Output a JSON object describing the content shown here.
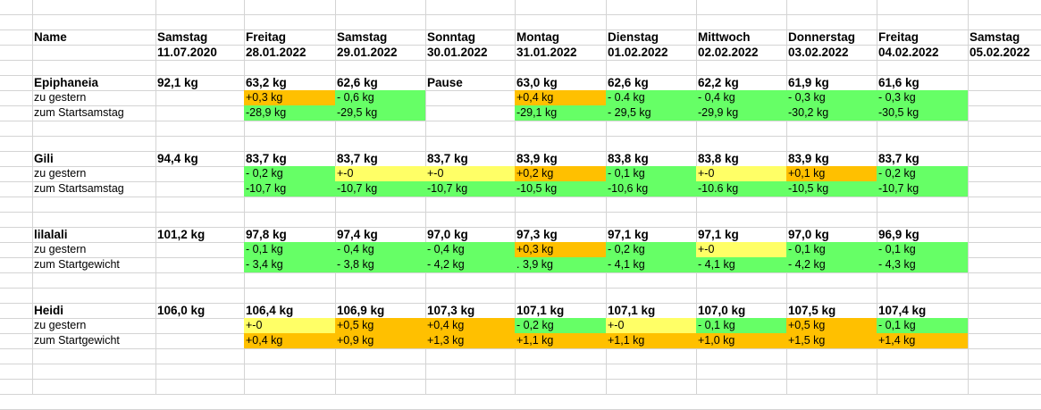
{
  "colors": {
    "green": "#66ff66",
    "orange": "#ffc000",
    "yellow": "#ffff66",
    "grid": "#d4d4d4"
  },
  "header": {
    "name_label": "Name",
    "days": [
      {
        "weekday": "Samstag",
        "date": "11.07.2020"
      },
      {
        "weekday": "Freitag",
        "date": "28.01.2022"
      },
      {
        "weekday": "Samstag",
        "date": "29.01.2022"
      },
      {
        "weekday": "Sonntag",
        "date": "30.01.2022"
      },
      {
        "weekday": "Montag",
        "date": "31.01.2022"
      },
      {
        "weekday": "Dienstag",
        "date": "01.02.2022"
      },
      {
        "weekday": "Mittwoch",
        "date": "02.02.2022"
      },
      {
        "weekday": "Donnerstag",
        "date": "03.02.2022"
      },
      {
        "weekday": "Freitag",
        "date": "04.02.2022"
      },
      {
        "weekday": "Samstag",
        "date": "05.02.2022"
      }
    ]
  },
  "people": [
    {
      "name": "Epiphaneia",
      "weights": [
        "92,1 kg",
        "63,2 kg",
        "62,6 kg",
        "Pause",
        "63,0 kg",
        "62,6 kg",
        "62,2 kg",
        "61,9 kg",
        "61,6 kg",
        ""
      ],
      "row2_label": "zu gestern",
      "row2": [
        {
          "v": "",
          "c": ""
        },
        {
          "v": "+0,3 kg",
          "c": "orange"
        },
        {
          "v": "- 0,6 kg",
          "c": "green"
        },
        {
          "v": "",
          "c": ""
        },
        {
          "v": "+0,4 kg",
          "c": "orange"
        },
        {
          "v": "- 0.4 kg",
          "c": "green"
        },
        {
          "v": "- 0,4 kg",
          "c": "green"
        },
        {
          "v": "- 0,3 kg",
          "c": "green"
        },
        {
          "v": "- 0,3 kg",
          "c": "green"
        },
        {
          "v": "",
          "c": ""
        }
      ],
      "row3_label": "zum Startsamstag",
      "row3": [
        {
          "v": "",
          "c": ""
        },
        {
          "v": "-28,9 kg",
          "c": "green"
        },
        {
          "v": "-29,5 kg",
          "c": "green"
        },
        {
          "v": "",
          "c": ""
        },
        {
          "v": "-29,1 kg",
          "c": "green"
        },
        {
          "v": "- 29,5 kg",
          "c": "green"
        },
        {
          "v": "-29,9 kg",
          "c": "green"
        },
        {
          "v": "-30,2 kg",
          "c": "green"
        },
        {
          "v": "-30,5 kg",
          "c": "green"
        },
        {
          "v": "",
          "c": ""
        }
      ]
    },
    {
      "name": "Gili",
      "weights": [
        "94,4 kg",
        "83,7 kg",
        "83,7 kg",
        "83,7 kg",
        "83,9 kg",
        "83,8 kg",
        "83,8 kg",
        "83,9 kg",
        "83,7 kg",
        ""
      ],
      "row2_label": "zu gestern",
      "row2": [
        {
          "v": "",
          "c": ""
        },
        {
          "v": "- 0,2 kg",
          "c": "green"
        },
        {
          "v": "+-0",
          "c": "yellow"
        },
        {
          "v": "+-0",
          "c": "yellow"
        },
        {
          "v": "+0,2 kg",
          "c": "orange"
        },
        {
          "v": "- 0,1 kg",
          "c": "green"
        },
        {
          "v": "+-0",
          "c": "yellow"
        },
        {
          "v": "+0,1 kg",
          "c": "orange"
        },
        {
          "v": "- 0,2 kg",
          "c": "green"
        },
        {
          "v": "",
          "c": ""
        }
      ],
      "row3_label": "zum Startsamstag",
      "row3": [
        {
          "v": "",
          "c": ""
        },
        {
          "v": "-10,7 kg",
          "c": "green"
        },
        {
          "v": "-10,7 kg",
          "c": "green"
        },
        {
          "v": "-10,7 kg",
          "c": "green"
        },
        {
          "v": "-10,5 kg",
          "c": "green"
        },
        {
          "v": "-10,6 kg",
          "c": "green"
        },
        {
          "v": "-10.6 kg",
          "c": "green"
        },
        {
          "v": "-10,5 kg",
          "c": "green"
        },
        {
          "v": "-10,7 kg",
          "c": "green"
        },
        {
          "v": "",
          "c": ""
        }
      ]
    },
    {
      "name": "lilalali",
      "weights": [
        "101,2 kg",
        "97,8 kg",
        "97,4 kg",
        "97,0 kg",
        "97,3 kg",
        "97,1 kg",
        "97,1 kg",
        "97,0 kg",
        "96,9 kg",
        ""
      ],
      "row2_label": "zu gestern",
      "row2": [
        {
          "v": "",
          "c": ""
        },
        {
          "v": "- 0,1 kg",
          "c": "green"
        },
        {
          "v": "- 0,4 kg",
          "c": "green"
        },
        {
          "v": "- 0,4 kg",
          "c": "green"
        },
        {
          "v": "+0,3 kg",
          "c": "orange"
        },
        {
          "v": "- 0,2 kg",
          "c": "green"
        },
        {
          "v": "+-0",
          "c": "yellow"
        },
        {
          "v": "- 0,1 kg",
          "c": "green"
        },
        {
          "v": "- 0,1 kg",
          "c": "green"
        },
        {
          "v": "",
          "c": ""
        }
      ],
      "row3_label": "zum Startgewicht",
      "row3": [
        {
          "v": "",
          "c": ""
        },
        {
          "v": "- 3,4 kg",
          "c": "green"
        },
        {
          "v": "- 3,8 kg",
          "c": "green"
        },
        {
          "v": "- 4,2 kg",
          "c": "green"
        },
        {
          "v": ". 3,9 kg",
          "c": "green"
        },
        {
          "v": "- 4,1 kg",
          "c": "green"
        },
        {
          "v": "- 4,1 kg",
          "c": "green"
        },
        {
          "v": "- 4,2 kg",
          "c": "green"
        },
        {
          "v": "- 4,3 kg",
          "c": "green"
        },
        {
          "v": "",
          "c": ""
        }
      ]
    },
    {
      "name": "Heidi",
      "weights": [
        "106,0 kg",
        "106,4 kg",
        "106,9 kg",
        "107,3 kg",
        "107,1 kg",
        "107,1 kg",
        "107,0 kg",
        "107,5 kg",
        "107,4 kg",
        ""
      ],
      "row2_label": "zu gestern",
      "row2": [
        {
          "v": "",
          "c": ""
        },
        {
          "v": "+-0",
          "c": "yellow"
        },
        {
          "v": "+0,5 kg",
          "c": "orange"
        },
        {
          "v": "+0,4 kg",
          "c": "orange"
        },
        {
          "v": "- 0,2 kg",
          "c": "green"
        },
        {
          "v": "+-0",
          "c": "yellow"
        },
        {
          "v": "- 0,1 kg",
          "c": "green"
        },
        {
          "v": "+0,5 kg",
          "c": "orange"
        },
        {
          "v": "- 0,1 kg",
          "c": "green"
        },
        {
          "v": "",
          "c": ""
        }
      ],
      "row3_label": "zum Startgewicht",
      "row3": [
        {
          "v": "",
          "c": ""
        },
        {
          "v": "+0,4 kg",
          "c": "orange"
        },
        {
          "v": "+0,9 kg",
          "c": "orange"
        },
        {
          "v": "+1,3 kg",
          "c": "orange"
        },
        {
          "v": "+1,1 kg",
          "c": "orange"
        },
        {
          "v": "+1,1 kg",
          "c": "orange"
        },
        {
          "v": "+1,0 kg",
          "c": "orange"
        },
        {
          "v": "+1,5 kg",
          "c": "orange"
        },
        {
          "v": "+1,4 kg",
          "c": "orange"
        },
        {
          "v": "",
          "c": ""
        }
      ]
    }
  ]
}
